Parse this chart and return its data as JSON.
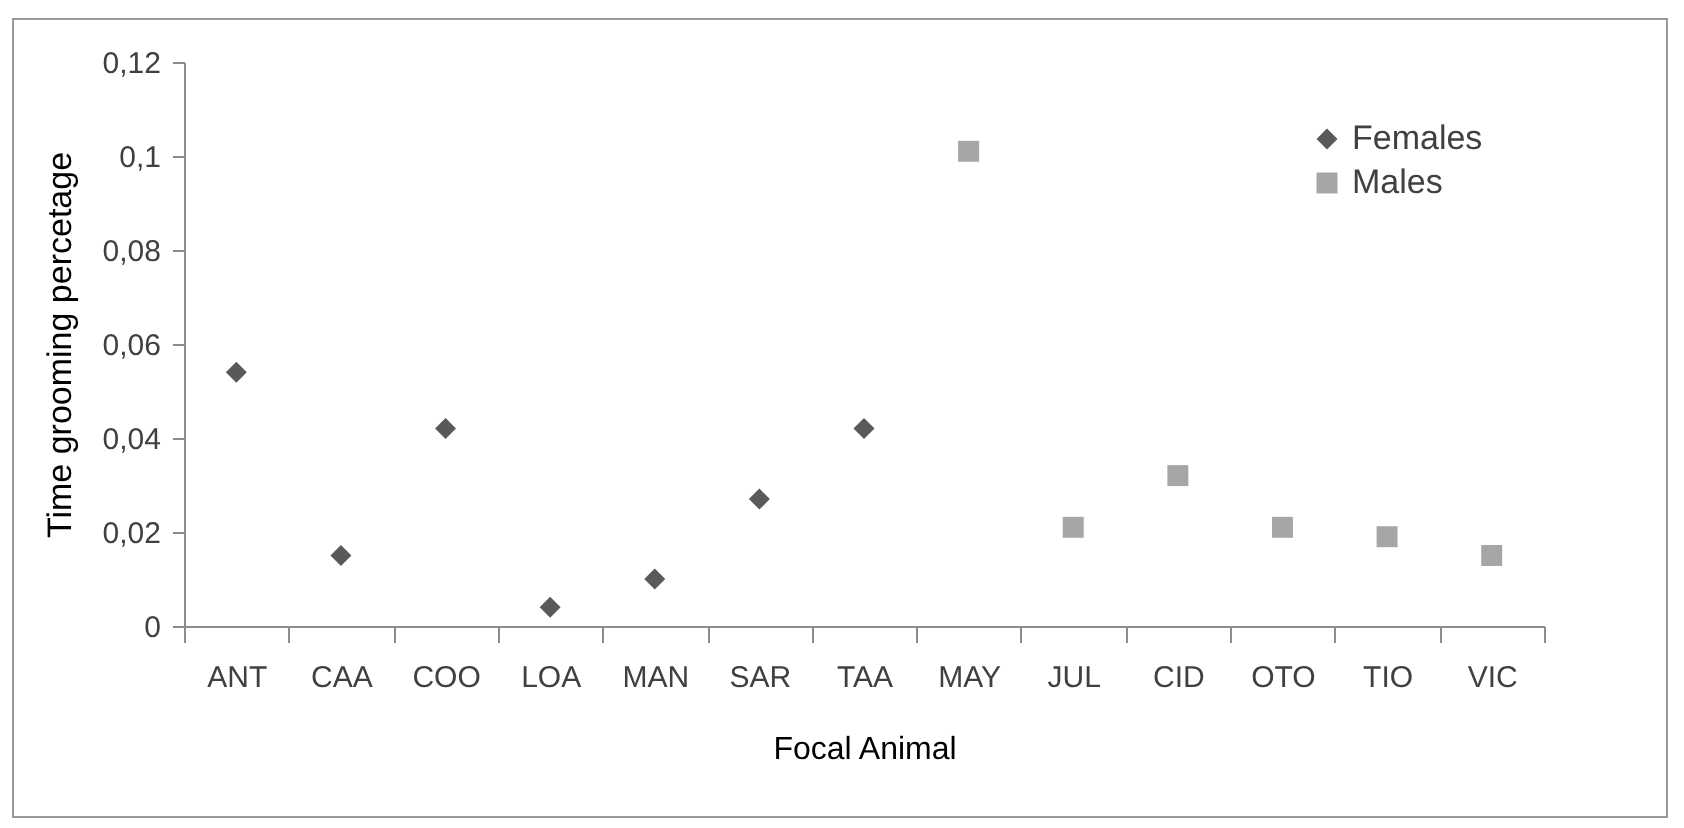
{
  "chart_data": {
    "type": "scatter",
    "xlabel": "Focal Animal",
    "ylabel": "Time grooming percetage",
    "categories": [
      "ANT",
      "CAA",
      "COO",
      "LOA",
      "MAN",
      "SAR",
      "TAA",
      "MAY",
      "JUL",
      "CID",
      "OTO",
      "TIO",
      "VIC"
    ],
    "series": [
      {
        "name": "Females",
        "color": "#595959",
        "marker": "diamond",
        "values": [
          0.054,
          0.015,
          0.042,
          0.004,
          0.01,
          0.027,
          0.042,
          null,
          null,
          null,
          null,
          null,
          null
        ]
      },
      {
        "name": "Males",
        "color": "#a6a6a6",
        "marker": "square",
        "values": [
          null,
          null,
          null,
          null,
          null,
          null,
          null,
          0.101,
          0.021,
          0.032,
          0.021,
          0.019,
          0.015
        ]
      }
    ],
    "ylim": [
      0,
      0.12
    ],
    "yticks": [
      0,
      {
        "value": 0.02,
        "label": "0,02"
      },
      {
        "value": 0.04,
        "label": "0,04"
      },
      {
        "value": 0.06,
        "label": "0,06"
      },
      {
        "value": 0.08,
        "label": "0,08"
      },
      {
        "value": 0.1,
        "label": "0,1"
      },
      {
        "value": 0.12,
        "label": "0,12"
      }
    ],
    "grid": false,
    "legend": "top right"
  }
}
